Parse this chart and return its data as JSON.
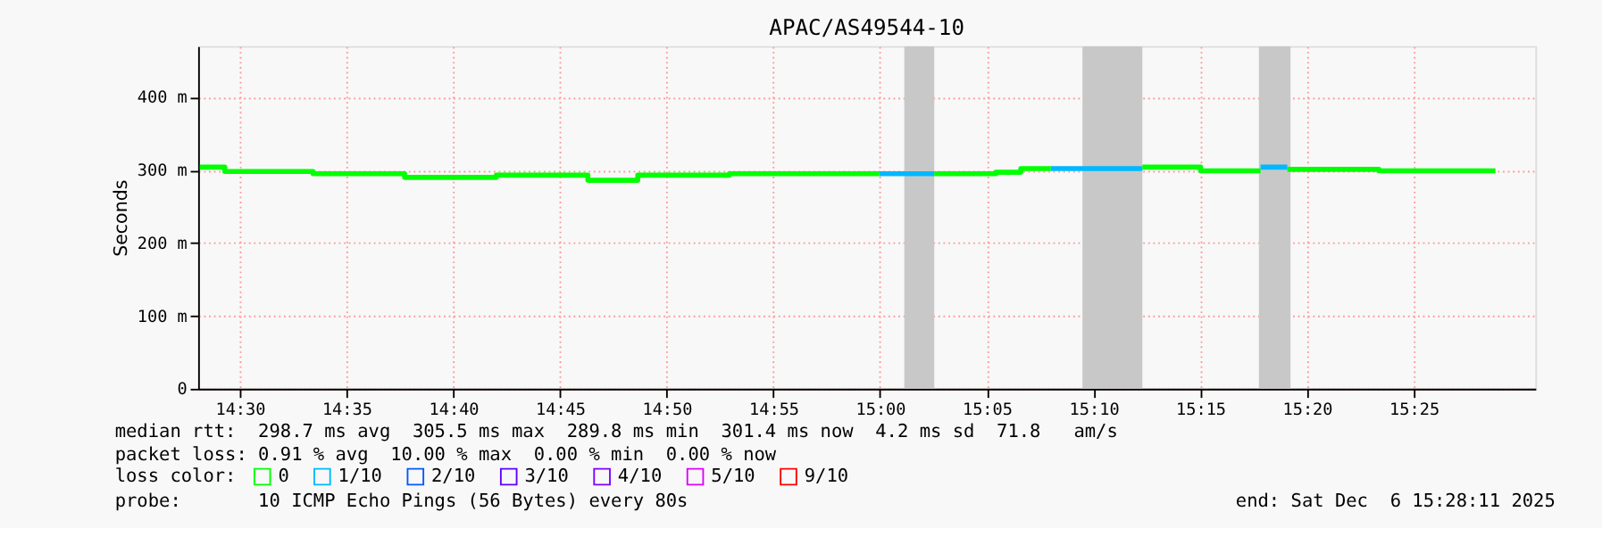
{
  "chart_data": {
    "type": "line",
    "title": "APAC/AS49544-10",
    "ylabel": "Seconds",
    "xlim": [
      14.4675,
      15.5117
    ],
    "ylim": [
      0,
      470
    ],
    "xticks": [
      {
        "value": 14.5,
        "label": "14:30"
      },
      {
        "value": 14.5833,
        "label": "14:35"
      },
      {
        "value": 14.6667,
        "label": "14:40"
      },
      {
        "value": 14.75,
        "label": "14:45"
      },
      {
        "value": 14.8333,
        "label": "14:50"
      },
      {
        "value": 14.9167,
        "label": "14:55"
      },
      {
        "value": 15.0,
        "label": "15:00"
      },
      {
        "value": 15.0833,
        "label": "15:05"
      },
      {
        "value": 15.1667,
        "label": "15:10"
      },
      {
        "value": 15.25,
        "label": "15:15"
      },
      {
        "value": 15.3333,
        "label": "15:20"
      },
      {
        "value": 15.4167,
        "label": "15:25"
      }
    ],
    "yticks": [
      0,
      {
        "value": 100,
        "label": "100 m"
      },
      {
        "value": 200,
        "label": "200 m"
      },
      {
        "value": 300,
        "label": "300 m"
      },
      {
        "value": 400,
        "label": "400 m"
      }
    ],
    "grid": true,
    "legend": "bottom",
    "legend_title": "loss color:",
    "line_style": "solid",
    "marker": "none",
    "series": [
      {
        "name": "0",
        "color": "#00ff00",
        "x": [
          14.4688,
          14.4883,
          14.4883,
          14.5572,
          14.5572,
          14.6287,
          14.6287,
          14.7003,
          14.7003,
          14.7718,
          14.7718,
          14.8108,
          14.8108,
          14.8823,
          14.8823,
          14.9994
        ],
        "values": [
          304,
          304,
          298,
          298,
          295,
          295,
          290,
          290,
          293,
          293,
          286,
          286,
          293,
          293,
          295,
          295
        ]
      },
      {
        "name": "1/10",
        "color": "#00b8ff",
        "x": [
          14.9994,
          15.0423
        ],
        "values": [
          295,
          295
        ]
      },
      {
        "name": "2/10",
        "color": "#0059ff"
      },
      {
        "name": "3/10",
        "color": "#5e00ff"
      },
      {
        "name": "4/10",
        "color": "#7e00ff"
      },
      {
        "name": "5/10",
        "color": "#dd00ff"
      },
      {
        "name": "9/10",
        "color": "#ff0000"
      },
      {
        "color": "#00ff00",
        "x": [
          15.0423,
          15.0904,
          15.0904,
          15.1099,
          15.1099,
          15.1333
        ],
        "values": [
          295,
          295,
          297,
          297,
          302,
          302
        ]
      },
      {
        "color": "#00b8ff",
        "x": [
          15.1333,
          15.2048
        ],
        "values": [
          302,
          302
        ]
      },
      {
        "color": "#00ff00",
        "x": [
          15.2048,
          15.2503,
          15.2503,
          15.2971
        ],
        "values": [
          304,
          304,
          299,
          299
        ]
      },
      {
        "color": "#00b8ff",
        "x": [
          15.2971,
          15.318
        ],
        "values": [
          304,
          304
        ]
      },
      {
        "color": "#00ff00",
        "x": [
          15.318,
          15.3895,
          15.3895,
          15.4805
        ],
        "values": [
          301,
          301,
          299,
          299
        ]
      }
    ],
    "bands": [
      {
        "axis": "x",
        "from": 15.0189,
        "to": 15.0423,
        "color": "#c8c8c8"
      },
      {
        "axis": "x",
        "from": 15.158,
        "to": 15.2048,
        "color": "#c8c8c8"
      },
      {
        "axis": "x",
        "from": 15.2958,
        "to": 15.3205,
        "color": "#c8c8c8"
      }
    ],
    "annotations": [
      "median rtt:  298.7 ms avg  305.5 ms max  289.8 ms min  301.4 ms now  4.2 ms sd  71.8   am/s",
      "packet loss: 0.91 % avg  10.00 % max  0.00 % min  0.00 % now",
      "probe:       10 ICMP Echo Pings (56 Bytes) every 80s",
      "end: Sat Dec  6 15:28:11 2025"
    ]
  }
}
